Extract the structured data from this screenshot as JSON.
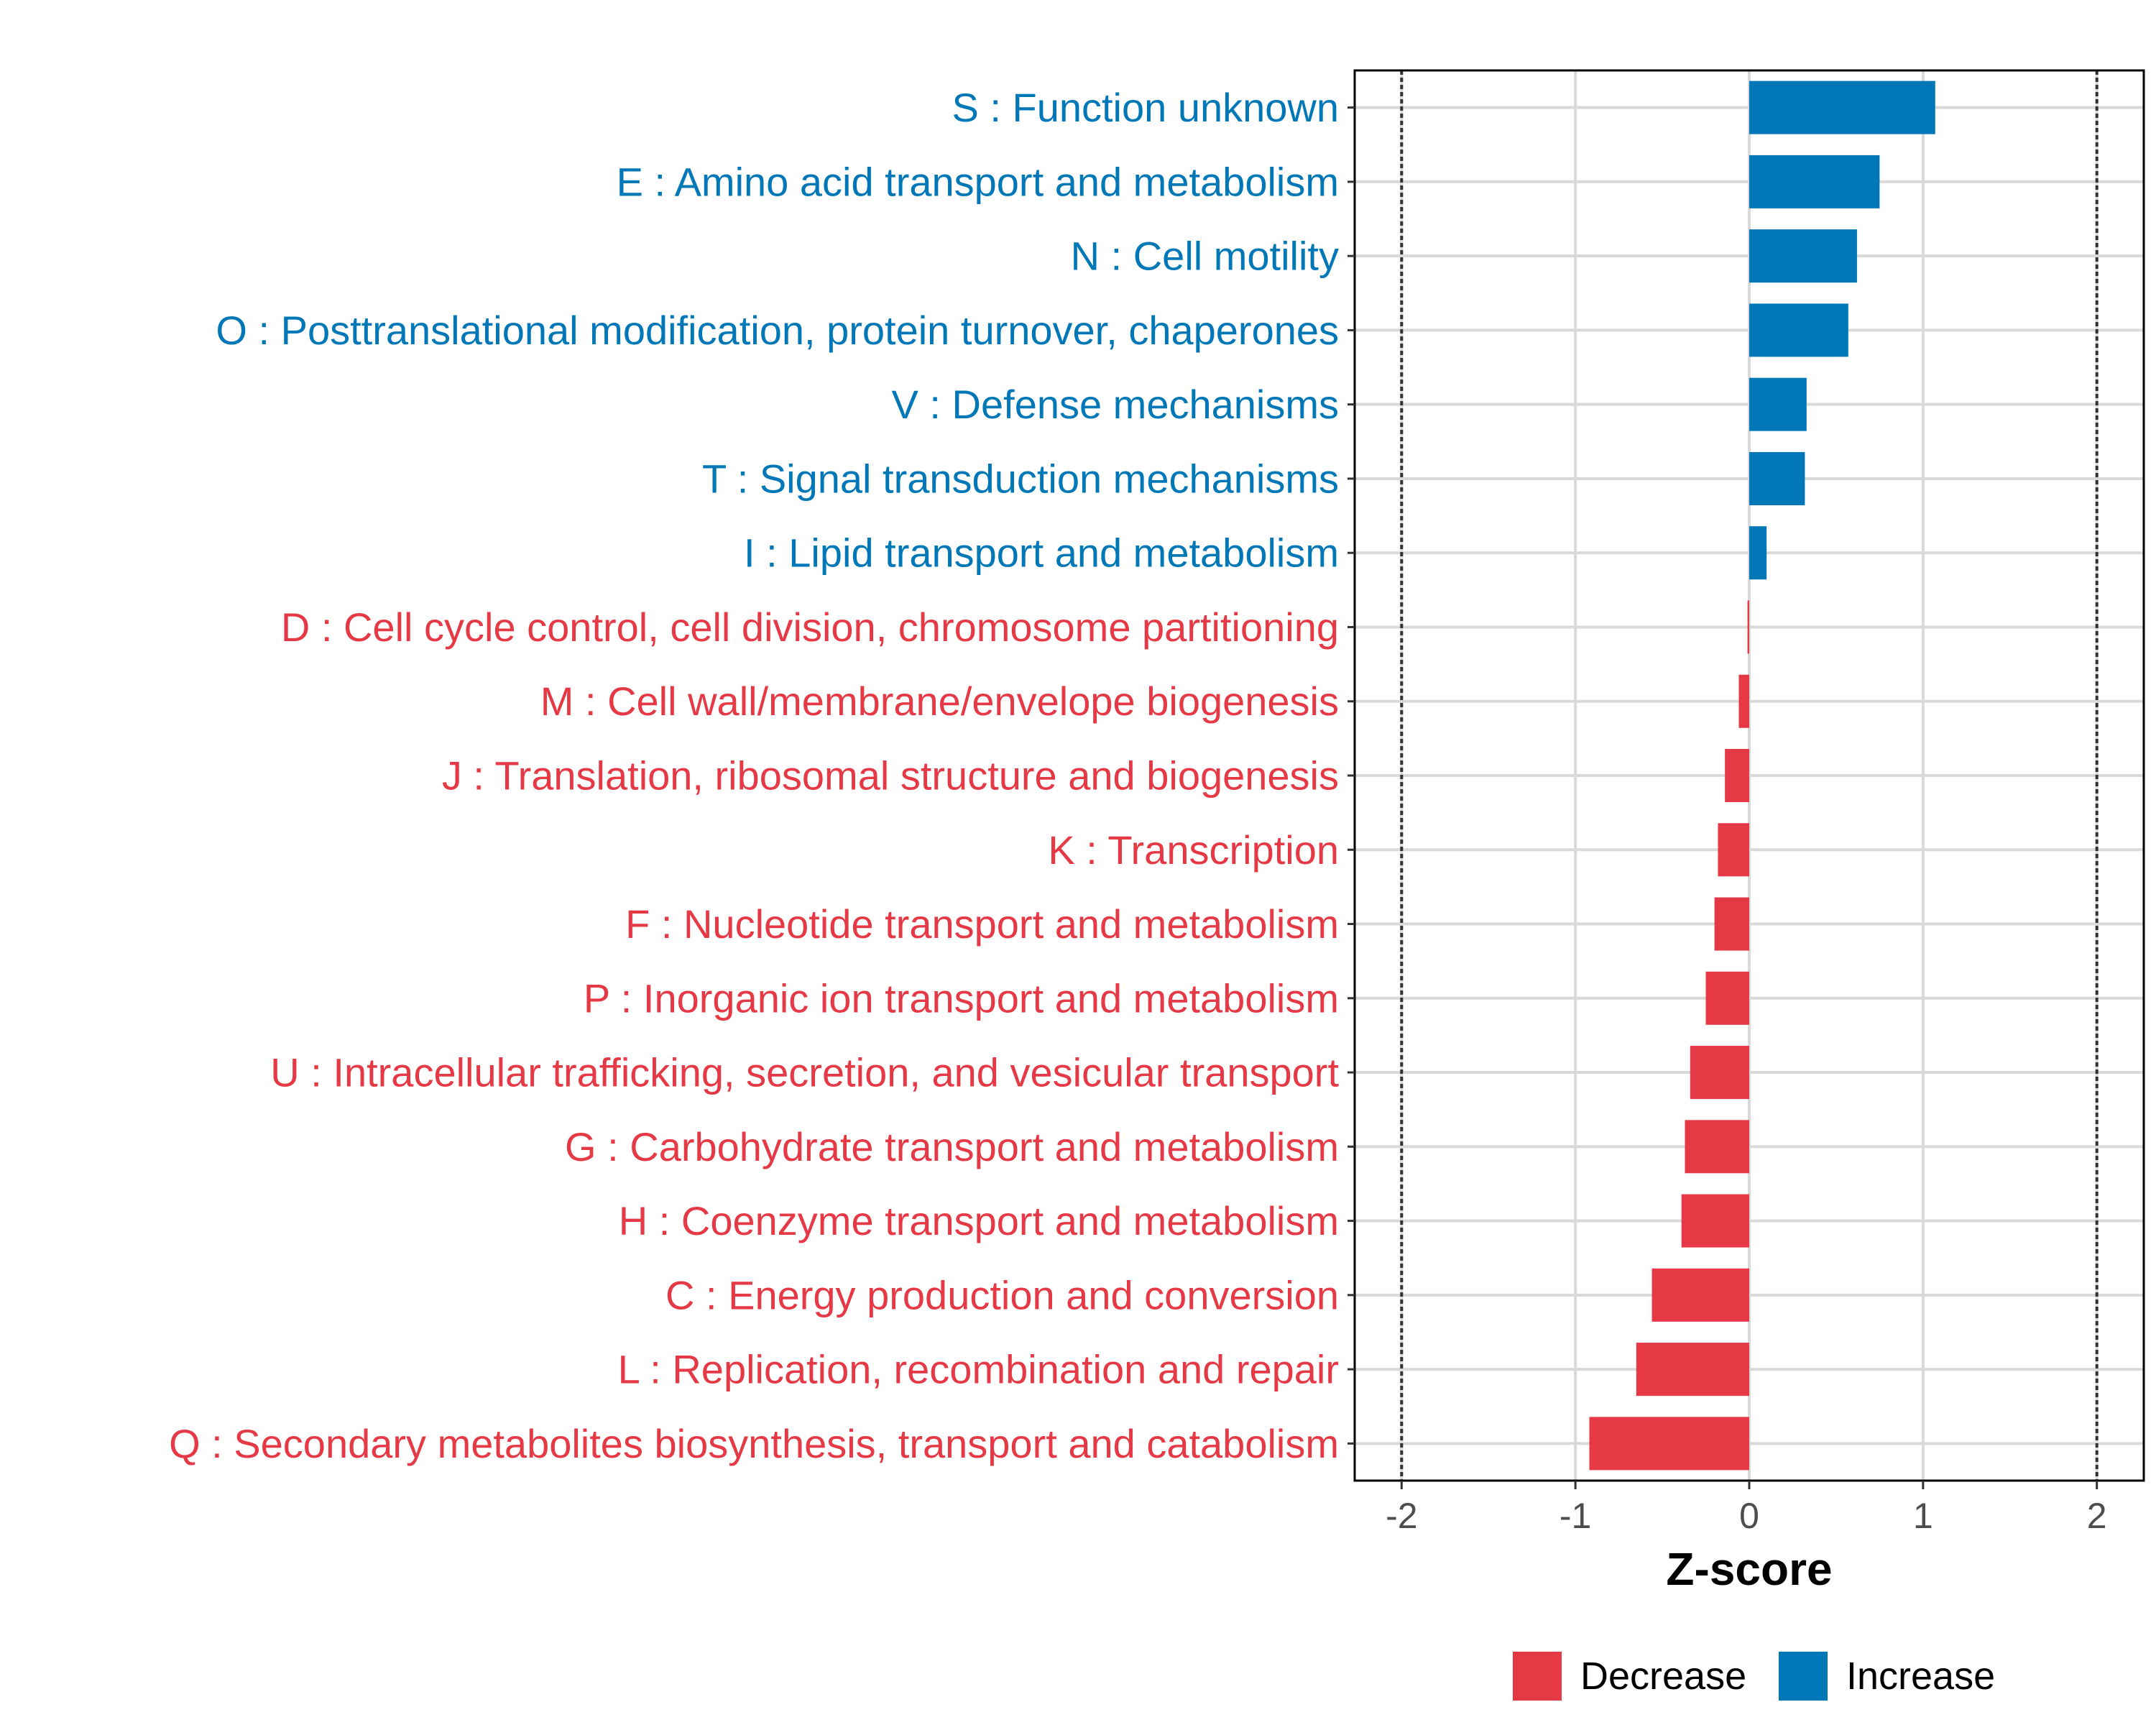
{
  "chart_data": {
    "type": "bar",
    "orientation": "horizontal",
    "title": "",
    "xlabel": "Z-score",
    "ylabel": "",
    "xlim": [
      -2.27,
      2.27
    ],
    "xticks": [
      -2,
      -1,
      0,
      1,
      2
    ],
    "xtick_labels": [
      "-2",
      "-1",
      "0",
      "1",
      "2"
    ],
    "reference_lines": [
      -2,
      2
    ],
    "grid": true,
    "legend_position": "bottom",
    "colors": {
      "Increase": "#0077b6",
      "Decrease": "#e63946"
    },
    "legend": [
      {
        "key": "Decrease",
        "label": "Decrease",
        "color": "#e63946"
      },
      {
        "key": "Increase",
        "label": "Increase",
        "color": "#0077b6"
      }
    ],
    "bars": [
      {
        "category": "S : Function unknown",
        "value": 1.07,
        "group": "Increase"
      },
      {
        "category": "E : Amino acid transport and metabolism",
        "value": 0.75,
        "group": "Increase"
      },
      {
        "category": "N : Cell motility",
        "value": 0.62,
        "group": "Increase"
      },
      {
        "category": "O : Posttranslational modification, protein turnover, chaperones",
        "value": 0.57,
        "group": "Increase"
      },
      {
        "category": "V : Defense mechanisms",
        "value": 0.33,
        "group": "Increase"
      },
      {
        "category": "T : Signal transduction mechanisms",
        "value": 0.32,
        "group": "Increase"
      },
      {
        "category": "I : Lipid transport and metabolism",
        "value": 0.1,
        "group": "Increase"
      },
      {
        "category": "D : Cell cycle control, cell division, chromosome partitioning",
        "value": -0.01,
        "group": "Decrease"
      },
      {
        "category": "M : Cell wall/membrane/envelope biogenesis",
        "value": -0.06,
        "group": "Decrease"
      },
      {
        "category": "J : Translation, ribosomal structure and biogenesis",
        "value": -0.14,
        "group": "Decrease"
      },
      {
        "category": "K : Transcription",
        "value": -0.18,
        "group": "Decrease"
      },
      {
        "category": "F : Nucleotide transport and metabolism",
        "value": -0.2,
        "group": "Decrease"
      },
      {
        "category": "P : Inorganic ion transport and metabolism",
        "value": -0.25,
        "group": "Decrease"
      },
      {
        "category": "U : Intracellular trafficking, secretion, and vesicular transport",
        "value": -0.34,
        "group": "Decrease"
      },
      {
        "category": "G : Carbohydrate transport and metabolism",
        "value": -0.37,
        "group": "Decrease"
      },
      {
        "category": "H : Coenzyme transport and metabolism",
        "value": -0.39,
        "group": "Decrease"
      },
      {
        "category": "C : Energy production and conversion",
        "value": -0.56,
        "group": "Decrease"
      },
      {
        "category": "L : Replication, recombination and repair",
        "value": -0.65,
        "group": "Decrease"
      },
      {
        "category": "Q : Secondary metabolites biosynthesis, transport and catabolism",
        "value": -0.92,
        "group": "Decrease"
      }
    ]
  }
}
